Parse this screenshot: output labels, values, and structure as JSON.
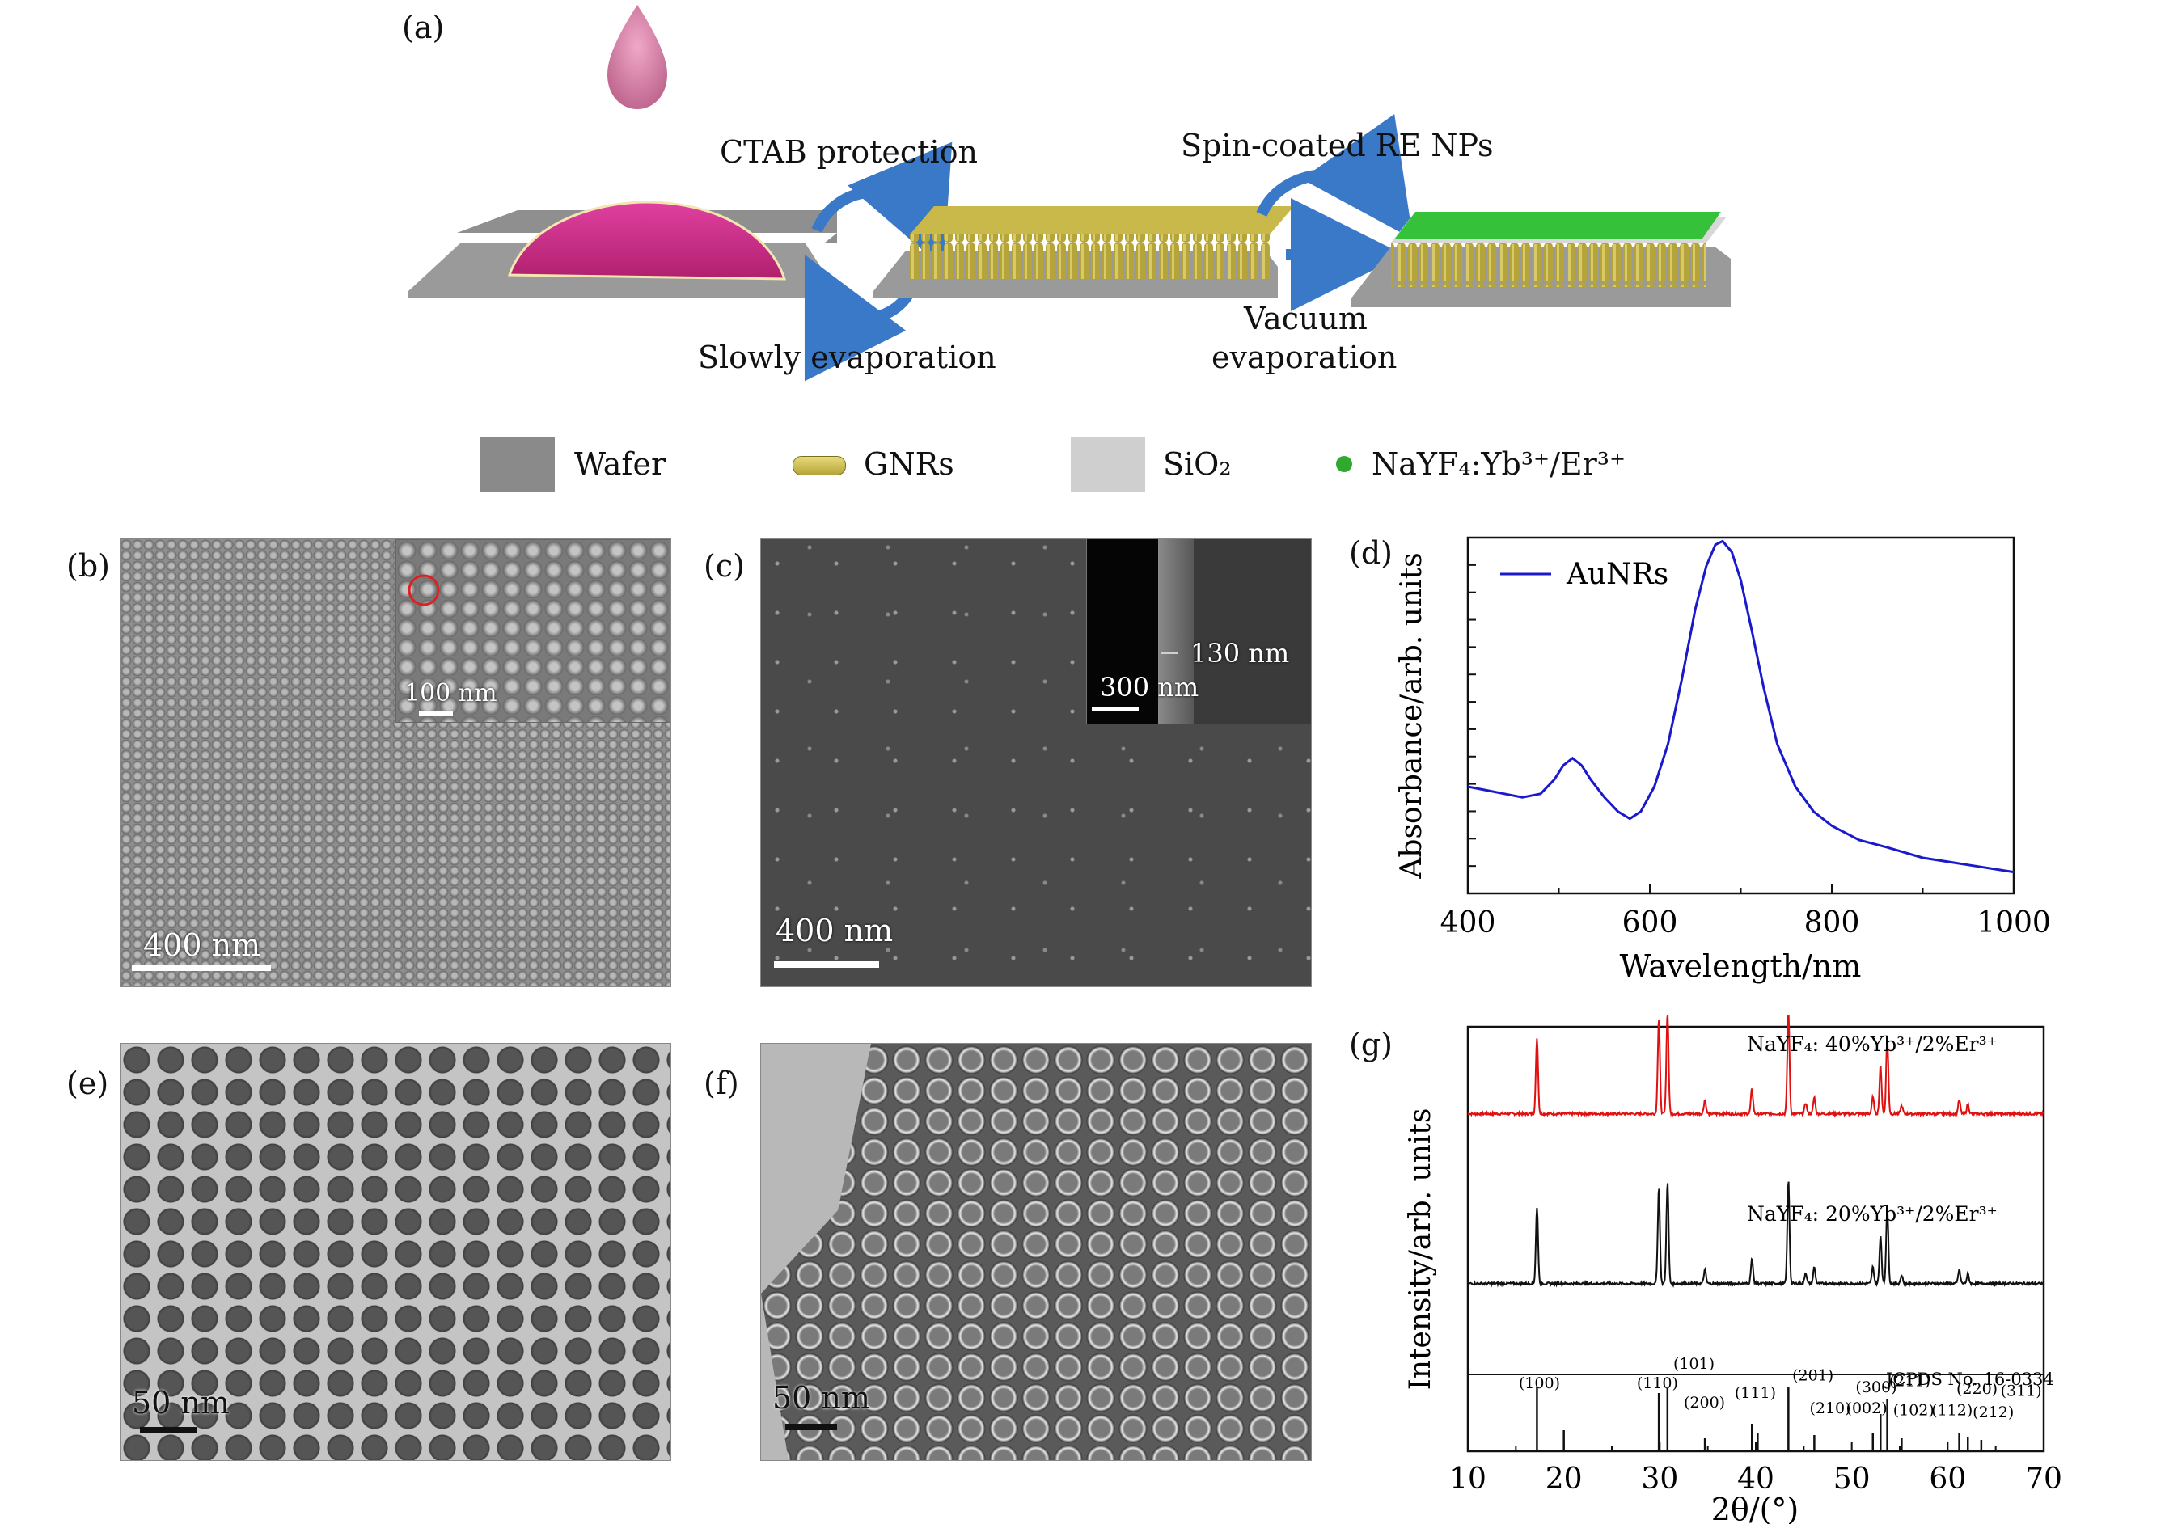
{
  "panel_labels": {
    "a": "(a)",
    "b": "(b)",
    "c": "(c)",
    "d": "(d)",
    "e": "(e)",
    "f": "(f)",
    "g": "(g)"
  },
  "schematic": {
    "step1_top": "CTAB protection",
    "step1_bottom": "Slowly evaporation",
    "step2_top": "Spin-coated RE NPs",
    "step2_bottom_line1": "Vacuum",
    "step2_bottom_line2": "evaporation"
  },
  "legend": {
    "wafer": "Wafer",
    "gnrs": "GNRs",
    "sio2": "SiO₂",
    "nayf4": "NaYF₄:Yb³⁺/Er³⁺",
    "colors": {
      "wafer": "#8a8a8a",
      "gnrs": "#b5a43a",
      "sio2": "#cfcfcf",
      "nayf4": "#2faa2f"
    }
  },
  "sem_b": {
    "scale": "400 nm",
    "inset_scale": "100 nm"
  },
  "sem_c": {
    "scale": "400 nm",
    "inset_scale": "300 nm",
    "inset_annotation": "130 nm"
  },
  "tem_e": {
    "scale": "50 nm"
  },
  "tem_f": {
    "scale": "50 nm"
  },
  "chart_data": [
    {
      "type": "line",
      "panel": "d",
      "xlabel": "Wavelength/nm",
      "ylabel": "Absorbance/arb. units",
      "xlim": [
        400,
        1000
      ],
      "x_ticks": [
        400,
        600,
        800,
        1000
      ],
      "ylim": [
        0,
        1.0
      ],
      "legend_position": "top-left",
      "series": [
        {
          "name": "AuNRs",
          "color": "#1a1acc",
          "x": [
            400,
            420,
            440,
            460,
            480,
            495,
            505,
            515,
            525,
            535,
            550,
            565,
            578,
            590,
            605,
            620,
            635,
            650,
            662,
            672,
            680,
            690,
            700,
            712,
            725,
            740,
            760,
            780,
            800,
            830,
            860,
            900,
            950,
            1000
          ],
          "y": [
            0.3,
            0.29,
            0.28,
            0.27,
            0.28,
            0.32,
            0.36,
            0.38,
            0.36,
            0.32,
            0.27,
            0.23,
            0.21,
            0.23,
            0.3,
            0.42,
            0.6,
            0.8,
            0.92,
            0.98,
            0.99,
            0.96,
            0.88,
            0.74,
            0.58,
            0.42,
            0.3,
            0.23,
            0.19,
            0.15,
            0.13,
            0.1,
            0.08,
            0.06
          ]
        }
      ]
    },
    {
      "type": "line",
      "panel": "g",
      "xlabel": "2θ/(°)",
      "ylabel": "Intensity/arb. units",
      "xlim": [
        10,
        70
      ],
      "x_ticks": [
        10,
        20,
        30,
        40,
        50,
        60,
        70
      ],
      "series": [
        {
          "name": "NaYF₄: 40%Yb³⁺/2%Er³⁺",
          "color": "#e01010",
          "baseline": 0.82,
          "scale": 0.17
        },
        {
          "name": "NaYF₄: 20%Yb³⁺/2%Er³⁺",
          "color": "#111111",
          "baseline": 0.4,
          "scale": 0.17
        }
      ],
      "peaks": [
        {
          "x": 17.2,
          "h": 0.55
        },
        {
          "x": 29.9,
          "h": 0.7
        },
        {
          "x": 30.8,
          "h": 0.74
        },
        {
          "x": 34.7,
          "h": 0.1
        },
        {
          "x": 39.6,
          "h": 0.18
        },
        {
          "x": 43.4,
          "h": 0.75
        },
        {
          "x": 45.2,
          "h": 0.08
        },
        {
          "x": 46.1,
          "h": 0.12
        },
        {
          "x": 52.2,
          "h": 0.12
        },
        {
          "x": 53.0,
          "h": 0.35
        },
        {
          "x": 53.7,
          "h": 0.55
        },
        {
          "x": 55.2,
          "h": 0.06
        },
        {
          "x": 61.2,
          "h": 0.1
        },
        {
          "x": 62.1,
          "h": 0.07
        }
      ],
      "reference": {
        "title": "JCPDS No. 16-0334",
        "lines": [
          17.2,
          20.0,
          29.9,
          30.8,
          34.7,
          39.6,
          40.2,
          43.4,
          46.1,
          52.2,
          53.0,
          53.7,
          55.2,
          61.2,
          62.1,
          63.5
        ],
        "hkl": [
          {
            "label": "(100)",
            "x": 15.3,
            "row": 0
          },
          {
            "label": "(110)",
            "x": 27.6,
            "row": 0
          },
          {
            "label": "(101)",
            "x": 31.4,
            "row": -1
          },
          {
            "label": "(200)",
            "x": 32.5,
            "row": 1
          },
          {
            "label": "(111)",
            "x": 37.8,
            "row": 0.5
          },
          {
            "label": "(201)",
            "x": 43.8,
            "row": -0.4
          },
          {
            "label": "(210)",
            "x": 45.6,
            "row": 1.3
          },
          {
            "label": "(002)",
            "x": 49.4,
            "row": 1.3
          },
          {
            "label": "(300)",
            "x": 50.4,
            "row": 0.2
          },
          {
            "label": "(211)",
            "x": 53.9,
            "row": -0.1
          },
          {
            "label": "(102)",
            "x": 54.3,
            "row": 1.4
          },
          {
            "label": "(112)",
            "x": 58.3,
            "row": 1.4
          },
          {
            "label": "(220)",
            "x": 60.9,
            "row": 0.3
          },
          {
            "label": "(212)",
            "x": 62.6,
            "row": 1.5
          },
          {
            "label": "(311)",
            "x": 65.5,
            "row": 0.4
          }
        ]
      }
    }
  ]
}
